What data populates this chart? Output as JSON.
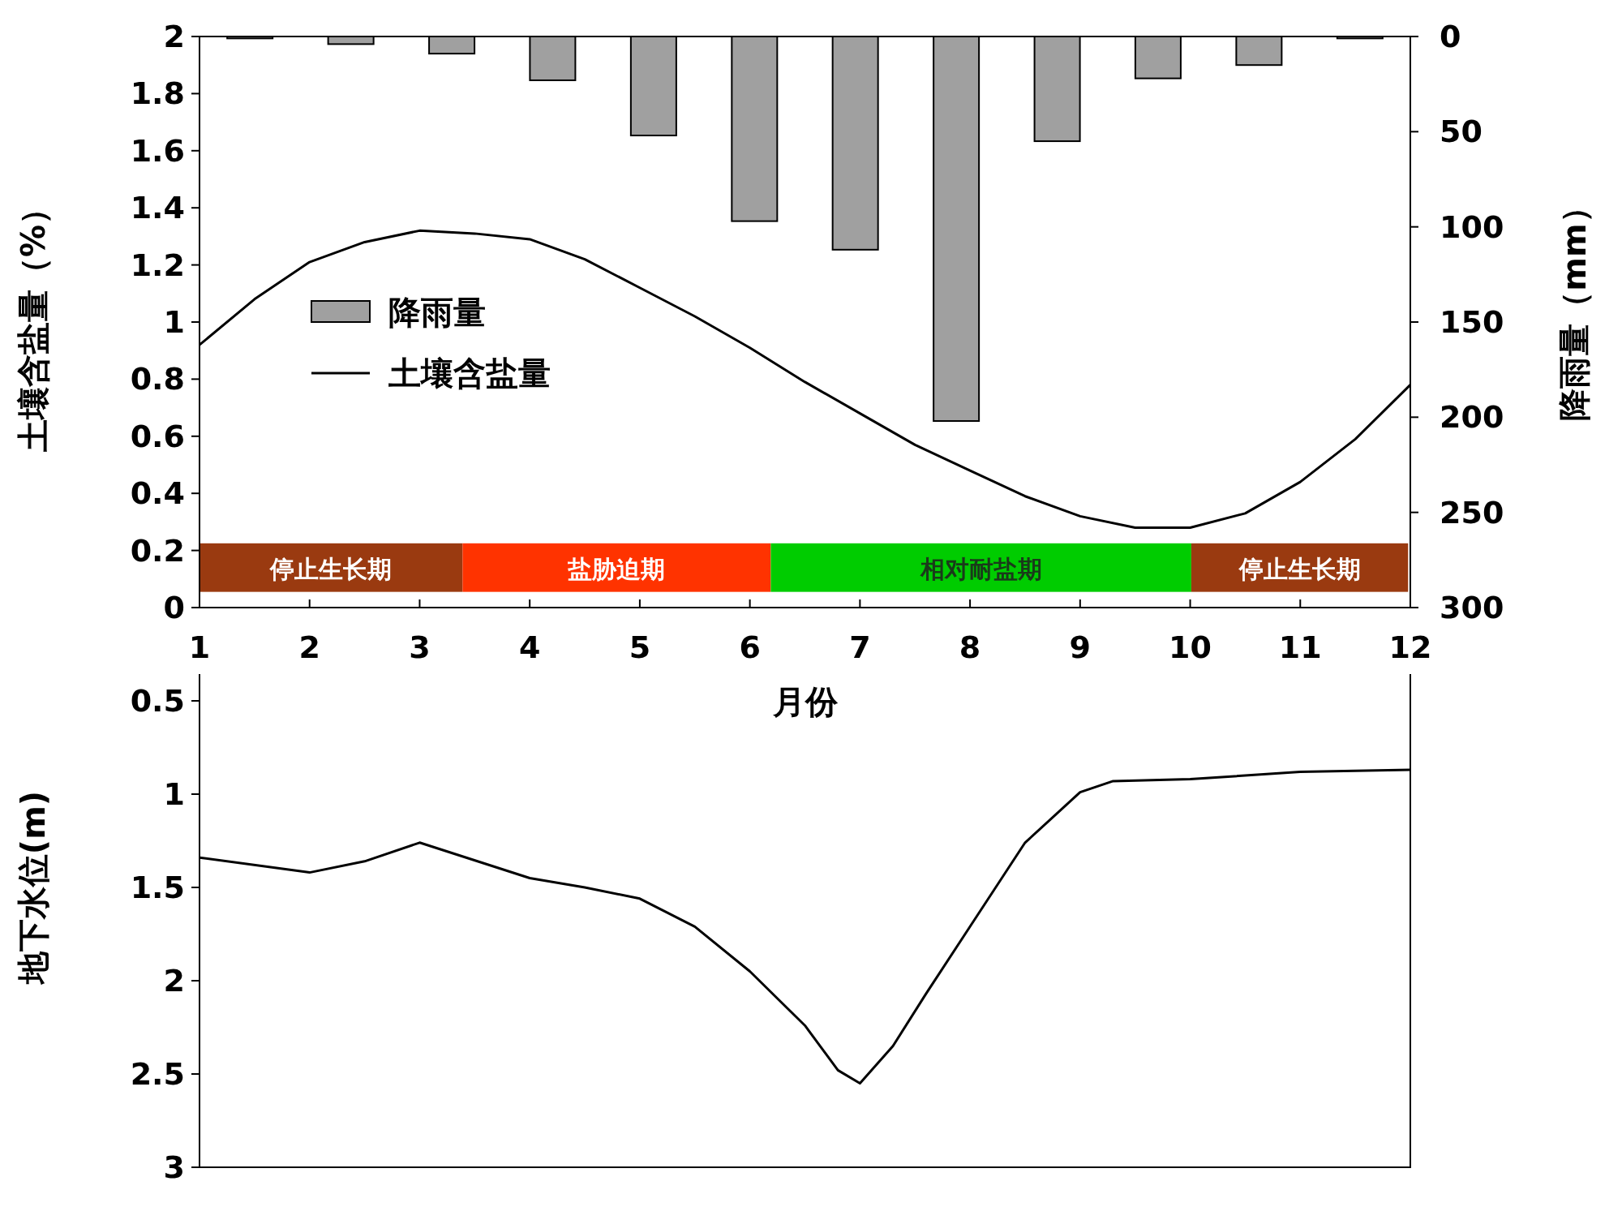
{
  "chart_data": [
    {
      "type": "line",
      "xlabel": "月份",
      "ylabel": "土壤含盐量（%）",
      "y2label": "降雨量（mm）",
      "xlim": [
        1,
        12
      ],
      "xticks": [
        1,
        2,
        3,
        4,
        5,
        6,
        7,
        8,
        9,
        10,
        11,
        12
      ],
      "ylim": [
        0,
        2
      ],
      "yticks": [
        0,
        0.2,
        0.4,
        0.6,
        0.8,
        1,
        1.2,
        1.4,
        1.6,
        1.8,
        2
      ],
      "y2lim": [
        300,
        0
      ],
      "y2ticks": [
        0,
        50,
        100,
        150,
        200,
        250,
        300
      ],
      "legend": "left",
      "series": [
        {
          "name": "降雨量",
          "type": "bar",
          "axis": "y2",
          "color": "#a0a0a0",
          "x": [
            1.458,
            2.375,
            3.292,
            4.208,
            5.125,
            6.042,
            6.958,
            7.875,
            8.792,
            9.708,
            10.625,
            11.542
          ],
          "values": [
            1,
            4,
            9,
            23,
            52,
            97,
            112,
            202,
            55,
            22,
            15,
            1
          ]
        },
        {
          "name": "土壤含盐量",
          "type": "line",
          "color": "#000000",
          "x": [
            1,
            1.5,
            2,
            2.5,
            3,
            3.5,
            4,
            4.5,
            5,
            5.5,
            6,
            6.5,
            7,
            7.5,
            8,
            8.5,
            9,
            9.5,
            10,
            10.5,
            11,
            11.5,
            12
          ],
          "values": [
            0.92,
            1.08,
            1.21,
            1.28,
            1.32,
            1.31,
            1.29,
            1.22,
            1.12,
            1.02,
            0.91,
            0.79,
            0.68,
            0.57,
            0.48,
            0.39,
            0.32,
            0.28,
            0.28,
            0.33,
            0.44,
            0.59,
            0.78
          ]
        }
      ],
      "bands": [
        {
          "axis": "x",
          "from": 1,
          "to": 3.39,
          "label": "停止生长期",
          "color": "#9a3a10"
        },
        {
          "axis": "x",
          "from": 3.39,
          "to": 6.19,
          "label": "盐胁迫期",
          "color": "#ff3300"
        },
        {
          "axis": "x",
          "from": 6.19,
          "to": 10.01,
          "label": "相对耐盐期",
          "color": "#00cc00"
        },
        {
          "axis": "x",
          "from": 10.01,
          "to": 11.98,
          "label": "停止生长期",
          "color": "#9a3a10"
        }
      ]
    },
    {
      "type": "line",
      "ylabel": "地下水位(m)",
      "xlim": [
        1,
        12
      ],
      "ylim": [
        3,
        0
      ],
      "yticks": [
        0.5,
        1,
        1.5,
        2,
        2.5,
        3
      ],
      "tick_labels": "y",
      "series": [
        {
          "color": "#000000",
          "x": [
            1,
            2,
            2.5,
            3,
            4,
            4.5,
            5,
            5.5,
            6,
            6.5,
            6.8,
            7,
            7.3,
            7.6,
            8,
            8.5,
            9,
            9.3,
            10,
            11,
            12
          ],
          "values": [
            1.34,
            1.42,
            1.36,
            1.26,
            1.45,
            1.5,
            1.56,
            1.71,
            1.95,
            2.24,
            2.48,
            2.55,
            2.35,
            2.07,
            1.71,
            1.26,
            0.99,
            0.93,
            0.92,
            0.88,
            0.87
          ]
        }
      ]
    }
  ]
}
